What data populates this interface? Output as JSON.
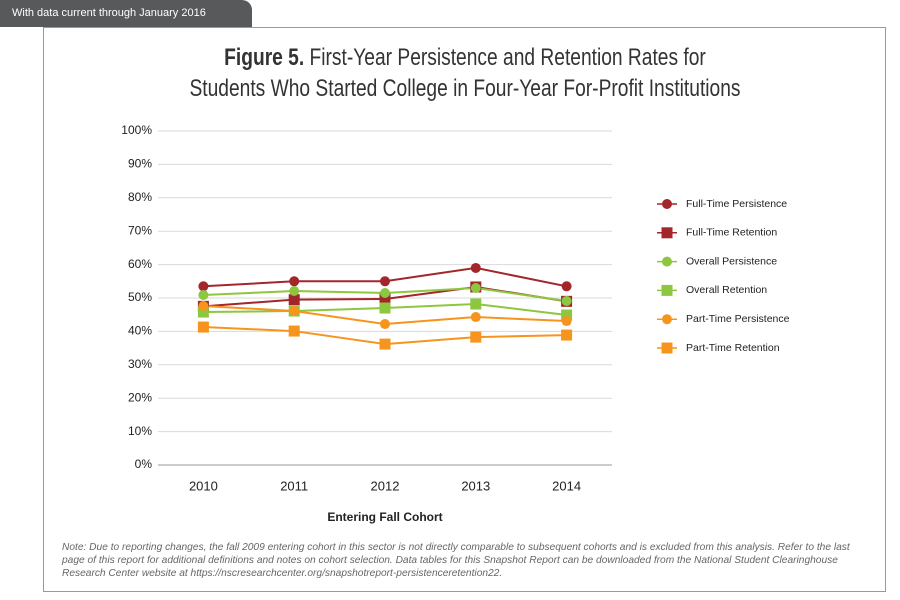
{
  "header": {
    "tab": "With data current through January 2016"
  },
  "chart_data": {
    "type": "line",
    "title_label": "Figure 5.",
    "title": "First-Year Persistence and Retention Rates for Students Who Started College in Four-Year For-Profit Institutions",
    "x_label": "Entering Fall Cohort",
    "categories": [
      "2010",
      "2011",
      "2012",
      "2013",
      "2014"
    ],
    "ylim": [
      0,
      100
    ],
    "yticks": [
      {
        "value": 0,
        "label": "0%"
      },
      {
        "value": 10,
        "label": "10%"
      },
      {
        "value": 20,
        "label": "20%"
      },
      {
        "value": 30,
        "label": "30%"
      },
      {
        "value": 40,
        "label": "40%"
      },
      {
        "value": 50,
        "label": "50%"
      },
      {
        "value": 60,
        "label": "60%"
      },
      {
        "value": 70,
        "label": "70%"
      },
      {
        "value": 80,
        "label": "80%"
      },
      {
        "value": 90,
        "label": "90%"
      },
      {
        "value": 100,
        "label": "100%"
      }
    ],
    "grid": true,
    "legend": "right",
    "series": [
      {
        "name": "Full-Time Persistence",
        "color": "#a3262a",
        "marker": "circle",
        "values": [
          53.5,
          55,
          55,
          59,
          53.5
        ]
      },
      {
        "name": "Full-Time Retention",
        "color": "#a3262a",
        "marker": "square",
        "values": [
          47.5,
          49.5,
          49.7,
          53.3,
          49
        ]
      },
      {
        "name": "Overall Persistence",
        "color": "#8dc63f",
        "marker": "circle",
        "values": [
          50.9,
          52.1,
          51.5,
          53,
          49.1
        ]
      },
      {
        "name": "Overall Retention",
        "color": "#8dc63f",
        "marker": "square",
        "values": [
          45.8,
          46.1,
          47,
          48.2,
          44.9
        ]
      },
      {
        "name": "Part-Time Persistence",
        "color": "#f7941d",
        "marker": "circle",
        "values": [
          47.6,
          46.1,
          42.2,
          44.3,
          43.1
        ]
      },
      {
        "name": "Part-Time Retention",
        "color": "#f7941d",
        "marker": "square",
        "values": [
          41.3,
          40.1,
          36.2,
          38.3,
          38.9
        ]
      }
    ],
    "note": "Note: Due to reporting changes, the fall 2009 entering cohort in this sector is not directly comparable to subsequent cohorts and is excluded from this analysis. Refer to the last page of this report for additional definitions and notes on cohort selection. Data tables for this Snapshot Report can be downloaded from the National Student Clearinghouse Research Center website at https://nscresearchcenter.org/snapshotreport-persistenceretention22."
  }
}
